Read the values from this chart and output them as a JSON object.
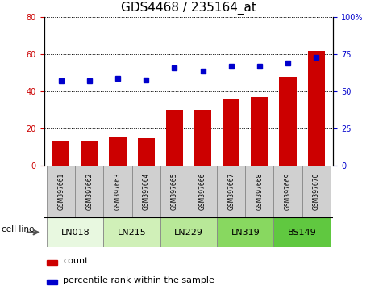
{
  "title": "GDS4468 / 235164_at",
  "samples": [
    "GSM397661",
    "GSM397662",
    "GSM397663",
    "GSM397664",
    "GSM397665",
    "GSM397666",
    "GSM397667",
    "GSM397668",
    "GSM397669",
    "GSM397670"
  ],
  "count_values": [
    13,
    13,
    16,
    15,
    30,
    30,
    36,
    37,
    48,
    62
  ],
  "percentile_values": [
    57,
    57,
    59,
    58,
    66,
    64,
    67,
    67,
    69,
    73
  ],
  "cell_groups": [
    {
      "label": "LN018",
      "start": 0,
      "end": 2,
      "color": "#e8f8e0"
    },
    {
      "label": "LN215",
      "start": 2,
      "end": 4,
      "color": "#d0f0b8"
    },
    {
      "label": "LN229",
      "start": 4,
      "end": 6,
      "color": "#b8e898"
    },
    {
      "label": "LN319",
      "start": 6,
      "end": 8,
      "color": "#88d860"
    },
    {
      "label": "BS149",
      "start": 8,
      "end": 10,
      "color": "#60c840"
    }
  ],
  "bar_color": "#cc0000",
  "dot_color": "#0000cc",
  "left_ylim": [
    0,
    80
  ],
  "right_ylim": [
    0,
    100
  ],
  "left_yticks": [
    0,
    20,
    40,
    60,
    80
  ],
  "right_yticks": [
    0,
    25,
    50,
    75,
    100
  ],
  "right_yticklabels": [
    "0",
    "25",
    "50",
    "75",
    "100%"
  ],
  "legend_count_label": "count",
  "legend_pct_label": "percentile rank within the sample",
  "cell_line_label": "cell line",
  "sample_box_color": "#d0d0d0",
  "sample_box_edge": "#888888",
  "tick_label_fontsize": 7,
  "title_fontsize": 11
}
